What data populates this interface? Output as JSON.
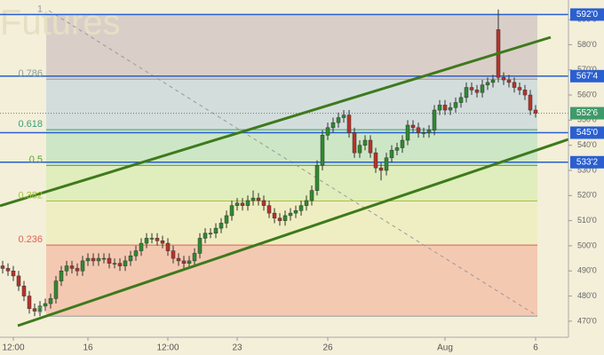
{
  "chart_data": {
    "type": "candlestick",
    "watermark": "Futures",
    "categories": [
      null,
      null,
      "12:00",
      null,
      null,
      null,
      null,
      null,
      null,
      null,
      null,
      null,
      null,
      null,
      null,
      null,
      "16",
      null,
      null,
      null,
      null,
      null,
      null,
      null,
      null,
      null,
      null,
      null,
      null,
      null,
      null,
      "12:00",
      null,
      null,
      null,
      null,
      null,
      null,
      null,
      null,
      null,
      null,
      null,
      null,
      "23",
      null,
      null,
      null,
      null,
      null,
      null,
      null,
      null,
      null,
      null,
      null,
      null,
      null,
      null,
      null,
      null,
      "26",
      null,
      null,
      null,
      null,
      null,
      null,
      null,
      null,
      null,
      null,
      null,
      null,
      null,
      null,
      null,
      null,
      null,
      null,
      null,
      null,
      null,
      "Aug",
      null,
      null,
      null,
      null,
      null,
      null,
      null,
      null,
      null,
      null,
      null,
      null,
      null,
      null,
      null,
      null,
      "6"
    ],
    "open": [
      492,
      491,
      490,
      488,
      484,
      480,
      475,
      474,
      476,
      477,
      479,
      486,
      490,
      492,
      491,
      490,
      494,
      495,
      494,
      495,
      495,
      493,
      493,
      492,
      494,
      496,
      498,
      501,
      503,
      503,
      502,
      501,
      498,
      495,
      494,
      493,
      494,
      497,
      503,
      505,
      505,
      507,
      509,
      512,
      516,
      517,
      516,
      518,
      519,
      518,
      516,
      513,
      511,
      510,
      512,
      513,
      514,
      516,
      518,
      522,
      532,
      544,
      547,
      549,
      551,
      552,
      545,
      537,
      540,
      542,
      537,
      531,
      530,
      535,
      538,
      539,
      542,
      548,
      547,
      545,
      545,
      546,
      554,
      556,
      554,
      555,
      557,
      559,
      563,
      562,
      561,
      564,
      565,
      586,
      567,
      566,
      565,
      563,
      562,
      560,
      554
    ],
    "high": [
      494,
      493,
      492,
      490,
      486,
      482,
      477,
      478,
      479,
      481,
      488,
      492,
      494,
      494,
      493,
      496,
      497,
      497,
      497,
      497,
      497,
      495,
      495,
      496,
      498,
      500,
      503,
      505,
      505,
      505,
      504,
      503,
      500,
      497,
      496,
      496,
      499,
      505,
      507,
      507,
      509,
      511,
      514,
      518,
      519,
      519,
      520,
      522,
      521,
      520,
      518,
      515,
      513,
      514,
      515,
      516,
      518,
      520,
      524,
      534,
      546,
      549,
      551,
      553,
      554,
      554,
      547,
      542,
      544,
      544,
      539,
      533,
      537,
      540,
      541,
      544,
      550,
      550,
      549,
      547,
      548,
      556,
      558,
      558,
      557,
      559,
      561,
      565,
      565,
      564,
      566,
      567,
      568,
      594,
      569,
      568,
      567,
      565,
      564,
      562,
      556
    ],
    "low": [
      489,
      488,
      486,
      482,
      478,
      473,
      472,
      472,
      474,
      475,
      477,
      484,
      488,
      489,
      488,
      488,
      492,
      492,
      492,
      493,
      491,
      491,
      490,
      490,
      492,
      494,
      496,
      499,
      501,
      500,
      499,
      496,
      493,
      492,
      491,
      491,
      492,
      495,
      501,
      503,
      503,
      505,
      507,
      510,
      514,
      514,
      514,
      516,
      516,
      514,
      511,
      509,
      508,
      508,
      510,
      511,
      512,
      514,
      516,
      520,
      530,
      542,
      545,
      547,
      549,
      543,
      535,
      535,
      538,
      535,
      529,
      526,
      528,
      533,
      536,
      537,
      540,
      545,
      543,
      543,
      543,
      544,
      552,
      552,
      552,
      553,
      555,
      557,
      560,
      559,
      559,
      562,
      563,
      565,
      564,
      563,
      561,
      560,
      558,
      552,
      551
    ],
    "close": [
      491,
      490,
      488,
      484,
      480,
      475,
      474,
      476,
      477,
      479,
      486,
      490,
      492,
      491,
      490,
      494,
      495,
      494,
      495,
      495,
      493,
      493,
      492,
      494,
      496,
      498,
      501,
      503,
      503,
      502,
      501,
      498,
      495,
      494,
      493,
      494,
      497,
      503,
      505,
      505,
      507,
      509,
      512,
      516,
      517,
      516,
      518,
      519,
      518,
      516,
      513,
      511,
      510,
      512,
      513,
      514,
      516,
      518,
      522,
      532,
      544,
      547,
      549,
      551,
      552,
      545,
      537,
      540,
      542,
      537,
      531,
      530,
      535,
      538,
      539,
      542,
      548,
      547,
      545,
      545,
      546,
      554,
      556,
      554,
      555,
      557,
      559,
      563,
      562,
      561,
      564,
      565,
      566,
      567,
      566,
      565,
      563,
      562,
      560,
      554,
      552.75
    ],
    "up_color": "#2f8a2f",
    "down_color": "#b8322a",
    "ylim": [
      463.6,
      597.8
    ],
    "yticks": [
      {
        "value": 470,
        "label": "470'0"
      },
      {
        "value": 480,
        "label": "480'0"
      },
      {
        "value": 490,
        "label": "490'0"
      },
      {
        "value": 500,
        "label": "500'0"
      },
      {
        "value": 510,
        "label": "510'0"
      },
      {
        "value": 520,
        "label": "520'0"
      },
      {
        "value": 530,
        "label": "530'0"
      },
      {
        "value": 540,
        "label": "540'0"
      },
      {
        "value": 550,
        "label": "550'0"
      },
      {
        "value": 560,
        "label": "560'0"
      },
      {
        "value": 570,
        "label": "570'0"
      },
      {
        "value": 580,
        "label": "580'0"
      },
      {
        "value": 590,
        "label": "590'0"
      }
    ],
    "fib": {
      "levels": [
        1,
        0.786,
        0.618,
        0.5,
        0.382,
        0.236,
        0
      ],
      "prices": [
        592,
        566.3,
        546.2,
        532,
        517.8,
        500.3,
        472
      ],
      "line_colors": [
        "#9a9a9a",
        "#8aa0a0",
        "#3aa07a",
        "#5aa032",
        "#a6c23a",
        "#e06050",
        "#9a9a9a"
      ],
      "zone_colors": [
        "#d9cfc8",
        "#d3dedc",
        "#cde7c6",
        "#e0edbc",
        "#efeec2",
        "#f4c9b2"
      ]
    },
    "price_lines": [
      {
        "value": 592,
        "label": "592'0"
      },
      {
        "value": 567.5,
        "label": "567'4"
      },
      {
        "value": 545,
        "label": "545'0"
      },
      {
        "value": 533.25,
        "label": "533'2"
      }
    ],
    "price_line_color": "#2a5fd0",
    "last_price": {
      "value": 552.75,
      "label": "552'6"
    },
    "last_price_color": "#3f9a6a"
  }
}
